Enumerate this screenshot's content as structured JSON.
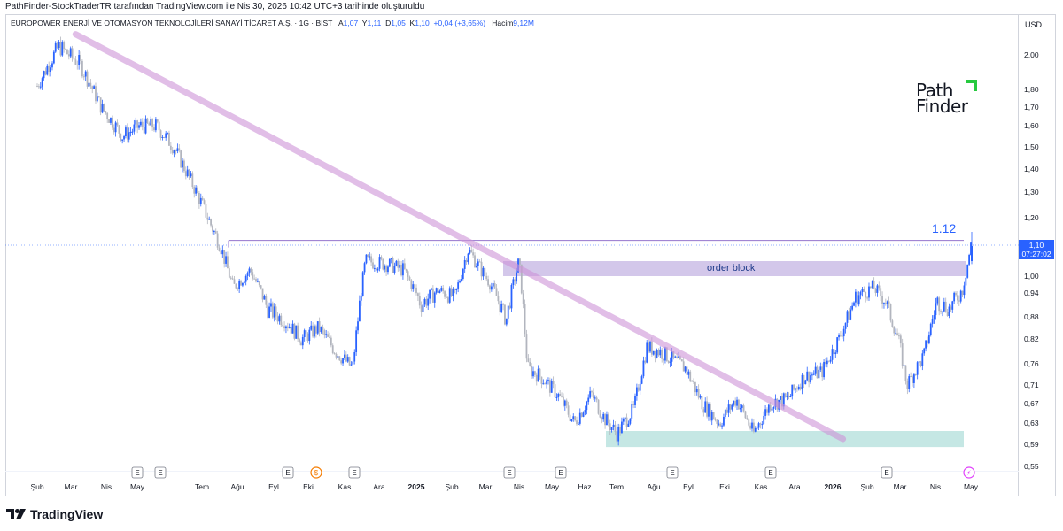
{
  "header": {
    "attribution": "PathFinder-StockTraderTR tarafından TradingView.com ile Nis 30, 2026 10:42 UTC+3 tarihinde oluşturuldu"
  },
  "legend": {
    "symbol": "EUROPOWER ENERJİ VE OTOMASYON TEKNOLOJİLERİ SANAYİ TİCARET A.Ş. · 1G · BIST",
    "open_label": "A",
    "open": "1,07",
    "high_label": "Y",
    "high": "1,11",
    "low_label": "D",
    "low": "1,05",
    "close_label": "K",
    "close": "1,10",
    "change": "+0,04 (+3,65%)",
    "volume_label": "Hacim",
    "volume": "9,12M"
  },
  "currency": "USD",
  "current_price": {
    "value": "1,10",
    "countdown": "07:27:02"
  },
  "annotations": {
    "price_note": "1.12",
    "order_block": "order block"
  },
  "logo": {
    "line1": "Path",
    "line2": "Finder"
  },
  "footer": {
    "brand": "TradingView"
  },
  "colors": {
    "up": "#2962ff",
    "down": "#b2b5be",
    "trendline": "#ce93d8",
    "order_block": "#d1c4e9",
    "support_zone": "#b2dfdb",
    "current_price": "#2962ff"
  },
  "chart_data": {
    "type": "candlestick",
    "y_scale": "log",
    "ylim": [
      0.55,
      2.15
    ],
    "y_ticks": [
      "2,00",
      "1,80",
      "1,70",
      "1,60",
      "1,50",
      "1,40",
      "1,30",
      "1,20",
      "1,10",
      "1,00",
      "0,94",
      "0,88",
      "0,82",
      "0,76",
      "0,71",
      "0,67",
      "0,63",
      "0,59",
      "0,55"
    ],
    "y_tick_values": [
      2.0,
      1.8,
      1.7,
      1.6,
      1.5,
      1.4,
      1.3,
      1.2,
      1.1,
      1.0,
      0.94,
      0.88,
      0.82,
      0.76,
      0.71,
      0.67,
      0.63,
      0.59,
      0.55
    ],
    "x_ticks": [
      "Şub",
      "Mar",
      "Nis",
      "May",
      "Tem",
      "Ağu",
      "Eyl",
      "Eki",
      "Kas",
      "Ara",
      "2025",
      "Şub",
      "Mar",
      "Nis",
      "May",
      "Haz",
      "Tem",
      "Ağu",
      "Eyl",
      "Eki",
      "Kas",
      "Ara",
      "2026",
      "Şub",
      "Mar",
      "Nis",
      "May"
    ],
    "x_tick_bold": [
      false,
      false,
      false,
      false,
      false,
      false,
      false,
      false,
      false,
      false,
      true,
      false,
      false,
      false,
      false,
      false,
      false,
      false,
      false,
      false,
      false,
      false,
      true,
      false,
      false,
      false,
      false
    ],
    "events": [
      "E",
      "E",
      "E",
      "S",
      "E",
      "E",
      "E",
      "E",
      "E",
      "E",
      "⚡"
    ],
    "series": [
      {
        "values": [
          [
            0.0,
            1.82
          ],
          [
            0.025,
            2.05
          ],
          [
            0.05,
            1.95
          ],
          [
            0.075,
            1.7
          ],
          [
            0.1,
            1.55
          ],
          [
            0.12,
            1.6
          ],
          [
            0.14,
            1.6
          ],
          [
            0.16,
            1.5
          ],
          [
            0.18,
            1.35
          ],
          [
            0.2,
            1.2
          ],
          [
            0.215,
            1.1
          ],
          [
            0.23,
            0.96
          ],
          [
            0.25,
            1.02
          ],
          [
            0.27,
            0.9
          ],
          [
            0.29,
            0.87
          ],
          [
            0.31,
            0.82
          ],
          [
            0.33,
            0.85
          ],
          [
            0.35,
            0.79
          ],
          [
            0.37,
            0.75
          ],
          [
            0.385,
            1.05
          ],
          [
            0.41,
            1.04
          ],
          [
            0.43,
            1.02
          ],
          [
            0.45,
            0.91
          ],
          [
            0.47,
            0.95
          ],
          [
            0.49,
            0.93
          ],
          [
            0.505,
            1.09
          ],
          [
            0.53,
            0.98
          ],
          [
            0.55,
            0.87
          ],
          [
            0.565,
            1.05
          ],
          [
            0.575,
            0.75
          ],
          [
            0.59,
            0.73
          ],
          [
            0.61,
            0.69
          ],
          [
            0.63,
            0.63
          ],
          [
            0.65,
            0.69
          ],
          [
            0.665,
            0.64
          ],
          [
            0.68,
            0.61
          ],
          [
            0.7,
            0.66
          ],
          [
            0.715,
            0.8
          ],
          [
            0.73,
            0.79
          ],
          [
            0.76,
            0.75
          ],
          [
            0.78,
            0.67
          ],
          [
            0.8,
            0.63
          ],
          [
            0.82,
            0.68
          ],
          [
            0.84,
            0.61
          ],
          [
            0.86,
            0.67
          ],
          [
            0.88,
            0.68
          ],
          [
            0.9,
            0.73
          ],
          [
            0.92,
            0.74
          ],
          [
            0.94,
            0.82
          ],
          [
            0.96,
            0.93
          ],
          [
            0.98,
            0.96
          ],
          [
            0.995,
            0.92
          ],
          [
            1.01,
            0.82
          ],
          [
            1.02,
            0.71
          ],
          [
            1.04,
            0.78
          ],
          [
            1.055,
            0.92
          ],
          [
            1.07,
            0.9
          ],
          [
            1.085,
            0.95
          ],
          [
            1.095,
            1.1
          ]
        ]
      }
    ],
    "overlays": {
      "trendline": [
        [
          0.045,
          2.12
        ],
        [
          0.945,
          0.6
        ]
      ],
      "resistance_level": 1.12,
      "order_block_range": [
        1.0,
        1.05
      ],
      "support_zone_range": [
        0.585,
        0.615
      ]
    }
  }
}
